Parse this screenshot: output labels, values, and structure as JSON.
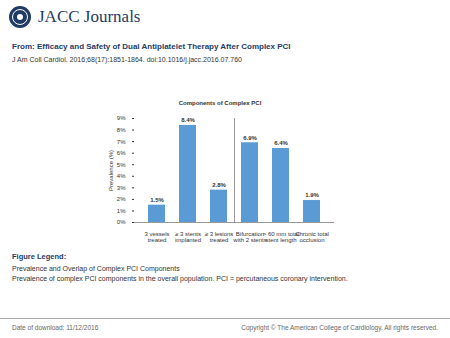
{
  "header": {
    "brand": "JACC Journals",
    "from": "From: Efficacy and Safety of Dual Antiplatelet Therapy After Complex PCI",
    "citation": "J Am Coll Cardiol. 2016;68(17):1851-1864. doi:10.1016/j.jacc.2016.07.760"
  },
  "chart_data": {
    "type": "bar",
    "title": "Components of Complex PCI",
    "y_label": "Prevalence (%)",
    "categories": [
      "3 vessels treated",
      "≥ 3 stents implanted",
      "≥ 3 lesions treated",
      "Bifurcation with 2 stents",
      "> 60 mm total stent length",
      "Chronic total occlusion"
    ],
    "values": [
      1.5,
      8.4,
      2.8,
      6.9,
      6.4,
      1.9
    ],
    "value_labels": [
      "1.5%",
      "8.4%",
      "2.8%",
      "6.9%",
      "6.4%",
      "1.9%"
    ],
    "data_labels": true,
    "color": "#5b9bd5",
    "grid": false,
    "ylim": [
      0,
      9
    ],
    "yticks": [
      {
        "value": 0,
        "label": "0%"
      },
      {
        "value": 1,
        "label": "1%"
      },
      {
        "value": 2,
        "label": "2%"
      },
      {
        "value": 3,
        "label": "3%"
      },
      {
        "value": 4,
        "label": "4%"
      },
      {
        "value": 5,
        "label": "5%"
      },
      {
        "value": 6,
        "label": "6%"
      },
      {
        "value": 7,
        "label": "7%"
      },
      {
        "value": 8,
        "label": "8%"
      },
      {
        "value": 9,
        "label": "9%"
      }
    ]
  },
  "figure_legend": {
    "heading": "Figure Legend:",
    "lines": [
      "Prevalence and Overlap of Complex PCI Components",
      "Prevalence of complex PCI components in the overall population. PCI = percutaneous coronary intervention."
    ]
  },
  "footer": {
    "date": "Date of download: 11/12/2016",
    "copyright": "Copyright © The American College of Cardiology. All rights reserved."
  }
}
